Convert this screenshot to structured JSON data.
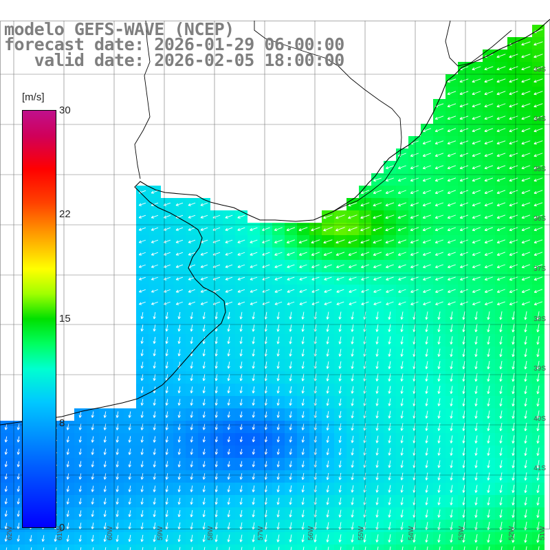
{
  "title": {
    "line1": "modelo GEFS-WAVE (NCEP)",
    "line2": "forecast date: 2026-01-29 06:00:00",
    "line3": "   valid date: 2026-02-05 18:00:00"
  },
  "colorbar": {
    "unit": "[m/s]",
    "ticks": [
      "30",
      "22",
      "15",
      "8",
      "0"
    ],
    "range": [
      0,
      30
    ]
  },
  "axes": {
    "lat_labels": [
      "33S",
      "34S",
      "35S",
      "36S",
      "37S",
      "38S",
      "39S",
      "40S",
      "41S"
    ],
    "lon_labels": [
      "62W",
      "61W",
      "60W",
      "59W",
      "58W",
      "57W",
      "56W",
      "55W",
      "54W",
      "53W",
      "52W",
      "51W"
    ]
  },
  "colors": {
    "title_text": "#7f7f7f",
    "coastline": "#000000",
    "grid": "#000000",
    "arrows": "#ffffff"
  },
  "layers": {
    "variable": "wind speed",
    "shading": "colored grid cells",
    "vectors": "white arrows"
  }
}
